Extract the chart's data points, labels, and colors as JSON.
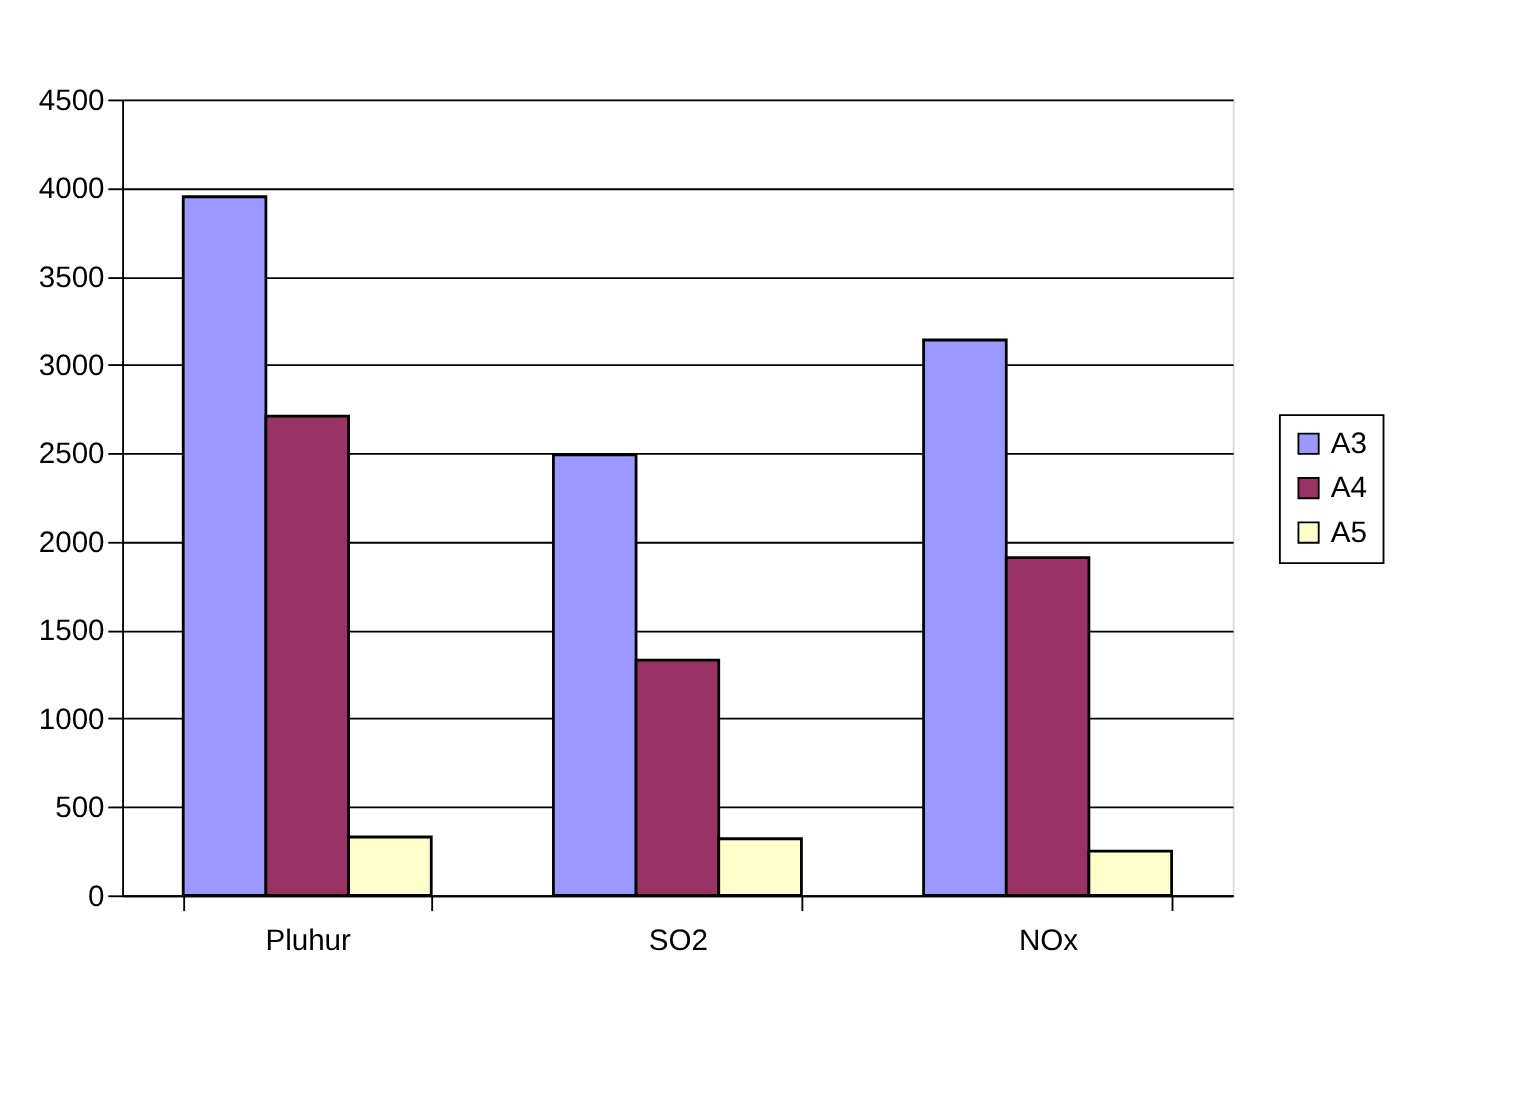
{
  "chart_data": {
    "type": "bar",
    "categories": [
      "Pluhur",
      "SO2",
      "NOx"
    ],
    "series": [
      {
        "name": "A3",
        "color": "#9999ff",
        "values": [
          3950,
          2490,
          3140
        ]
      },
      {
        "name": "A4",
        "color": "#993366",
        "values": [
          2710,
          1330,
          1910
        ]
      },
      {
        "name": "A5",
        "color": "#ffffcc",
        "values": [
          330,
          320,
          250
        ]
      }
    ],
    "ylim": [
      0,
      4500
    ],
    "yticks": [
      0,
      500,
      1000,
      1500,
      2000,
      2500,
      3000,
      3500,
      4000,
      4500
    ],
    "grid": "y",
    "legend": "right"
  }
}
